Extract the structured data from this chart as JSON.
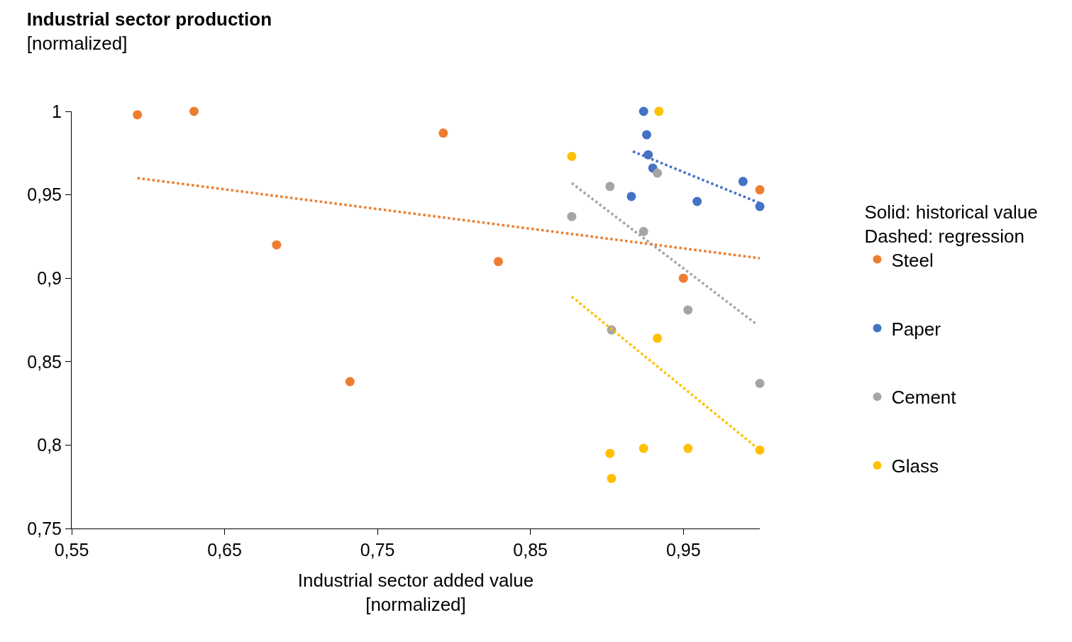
{
  "chart_data": {
    "type": "scatter",
    "title": "Industrial sector production",
    "subtitle": "[normalized]",
    "xlabel": "Industrial sector added value\n[normalized]",
    "legend_title": "Solid: historical value\nDashed: regression",
    "legend": "right",
    "xlim": [
      0.55,
      1.0
    ],
    "xticks": [
      {
        "value": 0.55,
        "label": "0,55"
      },
      {
        "value": 0.65,
        "label": "0,65"
      },
      {
        "value": 0.75,
        "label": "0,75"
      },
      {
        "value": 0.85,
        "label": "0,85"
      },
      {
        "value": 0.95,
        "label": "0,95"
      }
    ],
    "ylim": [
      0.75,
      1.0
    ],
    "yticks": [
      {
        "value": 0.75,
        "label": "0,75"
      },
      {
        "value": 0.8,
        "label": "0,8"
      },
      {
        "value": 0.85,
        "label": "0,85"
      },
      {
        "value": 0.9,
        "label": "0,9"
      },
      {
        "value": 0.95,
        "label": "0,95"
      },
      {
        "value": 1,
        "label": "1"
      }
    ],
    "series": [
      {
        "name": "Steel",
        "marker": "circle",
        "color": "#ed7d31",
        "x": [
          0.593,
          0.63,
          0.684,
          0.732,
          0.793,
          0.829,
          0.95,
          1.0
        ],
        "values": [
          0.998,
          1.0,
          0.92,
          0.838,
          0.987,
          0.91,
          0.9,
          0.953
        ]
      },
      {
        "name": "Paper",
        "marker": "circle",
        "color": "#4472c4",
        "x": [
          0.924,
          0.926,
          0.927,
          0.93,
          0.916,
          0.959,
          0.989,
          1.0
        ],
        "values": [
          1.0,
          0.986,
          0.974,
          0.966,
          0.949,
          0.946,
          0.958,
          0.943
        ]
      },
      {
        "name": "Cement",
        "marker": "circle",
        "color": "#a5a5a5",
        "x": [
          0.933,
          0.902,
          0.877,
          0.924,
          0.953,
          0.903,
          1.0
        ],
        "values": [
          0.963,
          0.955,
          0.937,
          0.928,
          0.881,
          0.869,
          0.837
        ]
      },
      {
        "name": "Glass",
        "marker": "circle",
        "color": "#ffc000",
        "x": [
          0.934,
          0.877,
          0.933,
          0.902,
          0.924,
          0.953,
          0.903,
          1.0
        ],
        "values": [
          1.0,
          0.973,
          0.864,
          0.795,
          0.798,
          0.798,
          0.78,
          0.797
        ]
      },
      {
        "type": "line",
        "line_style": "dotted",
        "color": "#ed7d31",
        "x": [
          0.593,
          1.0
        ],
        "values": [
          0.96,
          0.912
        ]
      },
      {
        "type": "line",
        "line_style": "dotted",
        "color": "#4472c4",
        "x": [
          0.917,
          1.0
        ],
        "values": [
          0.976,
          0.945
        ]
      },
      {
        "type": "line",
        "line_style": "dotted",
        "color": "#a5a5a5",
        "x": [
          0.877,
          0.997
        ],
        "values": [
          0.957,
          0.873
        ]
      },
      {
        "type": "line",
        "line_style": "dotted",
        "color": "#ffc000",
        "x": [
          0.877,
          1.0
        ],
        "values": [
          0.889,
          0.797
        ]
      }
    ]
  }
}
